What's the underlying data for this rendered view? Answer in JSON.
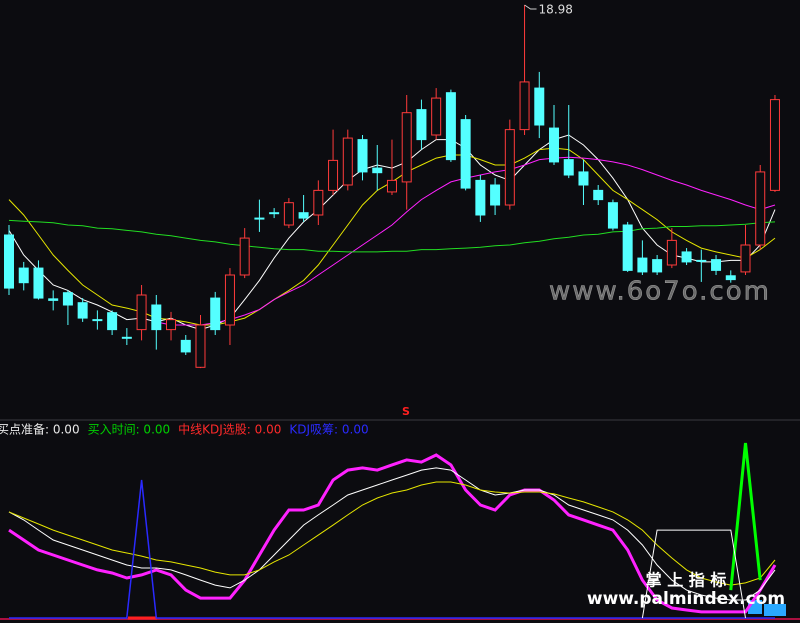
{
  "chart_data": [
    {
      "type": "candlestick",
      "ylim": [
        13.715,
        19.045
      ],
      "up_color": "#ff3b3b",
      "down_color": "#54ffff",
      "max_label": 18.98,
      "signal_text": "S",
      "signal_color": "#ff2020",
      "open": [
        15.99,
        15.56,
        15.56,
        15.16,
        15.24,
        15.11,
        14.89,
        14.98,
        14.66,
        14.76,
        15.08,
        14.76,
        14.62,
        14.27,
        15.17,
        14.82,
        15.47,
        16.21,
        16.28,
        16.12,
        16.28,
        16.25,
        16.57,
        16.64,
        17.23,
        16.86,
        16.55,
        16.68,
        17.62,
        17.29,
        17.84,
        17.49,
        16.7,
        16.64,
        16.38,
        17.36,
        17.9,
        17.38,
        16.97,
        16.81,
        16.57,
        16.41,
        16.12,
        15.69,
        15.67,
        15.6,
        15.77,
        15.66,
        15.67,
        15.46,
        15.51,
        15.86,
        16.57
      ],
      "high": [
        16.12,
        15.64,
        15.66,
        15.27,
        15.27,
        15.17,
        15.01,
        15.01,
        14.78,
        15.34,
        15.21,
        14.99,
        14.69,
        14.95,
        15.25,
        15.56,
        16.08,
        16.45,
        16.34,
        16.47,
        16.51,
        16.7,
        17.36,
        17.36,
        17.29,
        17.16,
        17.23,
        17.81,
        17.75,
        17.9,
        17.88,
        17.55,
        16.77,
        16.73,
        17.49,
        18.98,
        18.11,
        17.68,
        17.68,
        16.97,
        16.64,
        16.45,
        16.16,
        15.92,
        15.73,
        16.08,
        15.82,
        15.8,
        15.73,
        15.53,
        16.12,
        16.9,
        17.81
      ],
      "low": [
        15.21,
        15.27,
        15.15,
        15.01,
        14.82,
        14.86,
        14.76,
        14.69,
        14.56,
        14.62,
        14.5,
        14.62,
        14.43,
        14.26,
        14.69,
        14.56,
        15.43,
        16.03,
        16.21,
        16.08,
        16.16,
        16.12,
        16.51,
        16.57,
        16.7,
        16.57,
        16.51,
        16.32,
        17.1,
        17.23,
        16.94,
        16.57,
        16.16,
        16.25,
        16.32,
        17.29,
        17.25,
        16.9,
        16.73,
        16.38,
        16.38,
        16.05,
        15.51,
        15.47,
        15.47,
        15.56,
        15.6,
        15.38,
        15.47,
        15.37,
        15.47,
        15.8,
        16.55
      ],
      "close": [
        15.3,
        15.37,
        15.17,
        15.14,
        15.08,
        14.91,
        14.88,
        14.76,
        14.65,
        15.21,
        14.76,
        14.89,
        14.47,
        14.82,
        14.76,
        15.47,
        15.95,
        16.2,
        16.27,
        16.41,
        16.21,
        16.57,
        16.96,
        17.25,
        16.81,
        16.8,
        16.7,
        17.58,
        17.23,
        17.77,
        16.97,
        16.6,
        16.25,
        16.38,
        17.36,
        17.98,
        17.42,
        16.94,
        16.77,
        16.64,
        16.45,
        16.08,
        15.53,
        15.51,
        15.51,
        15.92,
        15.64,
        15.65,
        15.53,
        15.41,
        15.86,
        16.81,
        17.75
      ],
      "series": [
        {
          "color": "#ffffff",
          "values": [
            16.05,
            15.73,
            15.53,
            15.34,
            15.27,
            15.15,
            15.08,
            14.99,
            14.89,
            14.91,
            14.86,
            14.91,
            14.82,
            14.76,
            14.82,
            14.91,
            15.15,
            15.4,
            15.69,
            15.95,
            16.16,
            16.32,
            16.51,
            16.7,
            16.84,
            16.9,
            16.86,
            16.94,
            17.1,
            17.23,
            17.23,
            17.12,
            16.9,
            16.77,
            16.7,
            16.9,
            17.1,
            17.23,
            17.29,
            17.16,
            16.97,
            16.73,
            16.45,
            16.08,
            15.86,
            15.73,
            15.69,
            15.64,
            15.64,
            15.66,
            15.66,
            15.86,
            16.32
          ]
        },
        {
          "color": "#e6e600",
          "values": [
            16.45,
            16.25,
            15.99,
            15.73,
            15.53,
            15.34,
            15.21,
            15.08,
            15.04,
            14.99,
            14.91,
            14.89,
            14.86,
            14.82,
            14.82,
            14.86,
            14.91,
            15.02,
            15.15,
            15.27,
            15.4,
            15.6,
            15.86,
            16.12,
            16.38,
            16.57,
            16.68,
            16.81,
            16.9,
            16.99,
            17.03,
            17.03,
            16.97,
            16.9,
            16.9,
            16.99,
            17.1,
            17.12,
            17.1,
            16.97,
            16.77,
            16.57,
            16.45,
            16.32,
            16.19,
            16.03,
            15.92,
            15.82,
            15.77,
            15.73,
            15.69,
            15.8,
            15.95
          ]
        },
        {
          "color": "#ff22ff",
          "values": [
            null,
            null,
            null,
            null,
            null,
            null,
            null,
            null,
            null,
            null,
            14.86,
            14.82,
            14.82,
            14.82,
            14.85,
            14.89,
            14.95,
            15.02,
            15.15,
            15.25,
            15.34,
            15.47,
            15.6,
            15.73,
            15.86,
            15.99,
            16.12,
            16.29,
            16.45,
            16.57,
            16.68,
            16.73,
            16.77,
            16.81,
            16.84,
            16.9,
            16.97,
            16.99,
            17.0,
            16.99,
            16.97,
            16.94,
            16.9,
            16.84,
            16.77,
            16.7,
            16.64,
            16.57,
            16.51,
            16.45,
            16.38,
            16.32,
            16.38
          ]
        },
        {
          "color": "#22dd22",
          "values": [
            16.18,
            16.17,
            16.16,
            16.15,
            16.12,
            16.11,
            16.08,
            16.07,
            16.05,
            16.03,
            16.0,
            15.98,
            15.95,
            15.92,
            15.9,
            15.87,
            15.85,
            15.83,
            15.81,
            15.8,
            15.8,
            15.78,
            15.78,
            15.77,
            15.77,
            15.77,
            15.78,
            15.78,
            15.8,
            15.8,
            15.81,
            15.82,
            15.83,
            15.85,
            15.86,
            15.89,
            15.91,
            15.94,
            15.96,
            15.99,
            16.0,
            16.03,
            16.04,
            16.07,
            16.08,
            16.1,
            16.1,
            16.11,
            16.11,
            16.12,
            16.13,
            16.15,
            16.16
          ]
        }
      ]
    },
    {
      "type": "line",
      "ylim": [
        0,
        100
      ],
      "legend": [
        {
          "text": "买点准备: 0.00",
          "color": "#e8e8e8"
        },
        {
          "text": "买入时间: 0.00",
          "color": "#00d000"
        },
        {
          "text": "中线KDJ选股: 0.00",
          "color": "#ff2a2a"
        },
        {
          "text": "KDJ吸筹: 0.00",
          "color": "#2a2aff"
        }
      ],
      "series": [
        {
          "color": "#ff22ff",
          "width": 3,
          "values": [
            49.4,
            43.8,
            38.2,
            35.4,
            32.6,
            29.8,
            27.0,
            25.3,
            22.5,
            24.2,
            27.0,
            24.2,
            15.7,
            11.2,
            11.2,
            11.2,
            21.3,
            35.4,
            49.4,
            60.7,
            60.7,
            63.5,
            77.5,
            83.1,
            84.3,
            83.1,
            86.0,
            88.8,
            87.6,
            91.6,
            86.0,
            71.9,
            63.5,
            60.7,
            69.1,
            71.9,
            71.9,
            66.3,
            57.9,
            55.1,
            52.2,
            49.4,
            38.2,
            21.3,
            10.1,
            5.6,
            4.5,
            3.4,
            3.4,
            3.4,
            3.4,
            15.7,
            29.8
          ]
        },
        {
          "color": "#ffffff",
          "width": 1,
          "values": [
            59.6,
            55.1,
            49.4,
            43.8,
            41.0,
            38.2,
            35.4,
            32.6,
            29.8,
            28.1,
            28.1,
            27.0,
            24.2,
            21.3,
            18.5,
            16.9,
            21.3,
            27.0,
            35.4,
            43.8,
            52.2,
            57.9,
            63.5,
            69.1,
            71.9,
            74.7,
            77.5,
            80.3,
            83.1,
            84.3,
            83.1,
            77.5,
            71.9,
            69.1,
            70.2,
            71.9,
            71.9,
            69.1,
            63.5,
            60.7,
            57.9,
            55.1,
            49.4,
            41.0,
            29.8,
            21.3,
            15.7,
            12.9,
            11.2,
            10.1,
            10.1,
            15.7,
            27.0
          ]
        },
        {
          "color": "#e6e600",
          "width": 1,
          "values": [
            59.6,
            56.2,
            52.8,
            49.4,
            46.6,
            43.8,
            41.0,
            38.2,
            36.5,
            34.8,
            32.6,
            31.5,
            29.8,
            28.1,
            25.8,
            24.2,
            24.2,
            27.0,
            31.5,
            35.4,
            41.0,
            46.6,
            52.2,
            57.9,
            63.5,
            67.4,
            70.2,
            71.9,
            74.7,
            76.4,
            76.4,
            74.7,
            71.9,
            70.8,
            70.2,
            70.8,
            70.8,
            69.7,
            67.4,
            65.2,
            62.4,
            59.6,
            55.1,
            49.4,
            41.0,
            33.7,
            27.0,
            22.5,
            20.2,
            18.5,
            19.7,
            22.5,
            32.6
          ]
        },
        {
          "color": "#2a2aff",
          "width": 1.5,
          "values": [
            0,
            0,
            0,
            0,
            0,
            0,
            0,
            0,
            0,
            77.5,
            0,
            0,
            0,
            0,
            0,
            0,
            0,
            0,
            0,
            0,
            0,
            0,
            0,
            0,
            0,
            0,
            0,
            0,
            0,
            0,
            0,
            0,
            0,
            0,
            0,
            0,
            0,
            0,
            0,
            0,
            0,
            0,
            0,
            0,
            0,
            0,
            0,
            0,
            0,
            0,
            0,
            0,
            0
          ]
        },
        {
          "color": "#00ff00",
          "width": 3,
          "values": [
            null,
            null,
            null,
            null,
            null,
            null,
            null,
            null,
            null,
            null,
            null,
            null,
            null,
            null,
            null,
            null,
            null,
            null,
            null,
            null,
            null,
            null,
            null,
            null,
            null,
            null,
            null,
            null,
            null,
            null,
            null,
            null,
            null,
            null,
            null,
            null,
            null,
            null,
            null,
            null,
            null,
            null,
            null,
            null,
            null,
            null,
            null,
            null,
            null,
            15.7,
            98.3,
            21.3,
            null
          ]
        },
        {
          "color": "#ffffff",
          "width": 1,
          "values": [
            null,
            null,
            null,
            null,
            null,
            null,
            null,
            null,
            null,
            null,
            null,
            null,
            null,
            null,
            null,
            null,
            null,
            null,
            null,
            null,
            null,
            null,
            null,
            null,
            null,
            null,
            null,
            null,
            null,
            null,
            null,
            null,
            null,
            null,
            null,
            null,
            null,
            null,
            null,
            null,
            null,
            null,
            null,
            0,
            49.4,
            49.4,
            49.4,
            49.4,
            49.4,
            49.4,
            0,
            null,
            null
          ]
        }
      ]
    }
  ],
  "watermarks": [
    "www.6o7o.com",
    "掌 上 指 标",
    "www.palmindex.com"
  ]
}
